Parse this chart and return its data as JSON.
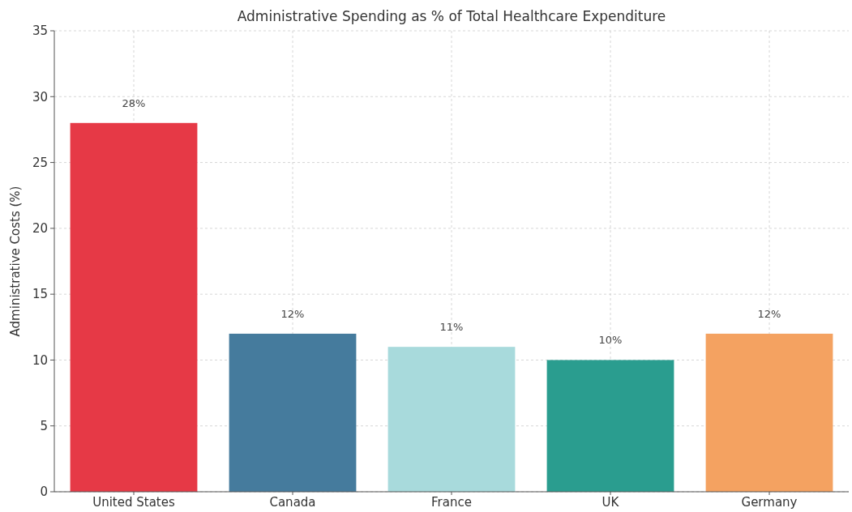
{
  "chart_data": {
    "type": "bar",
    "title": "Administrative Spending as % of Total Healthcare Expenditure",
    "ylabel": "Administrative Costs (%)",
    "categories": [
      "United States",
      "Canada",
      "France",
      "UK",
      "Germany"
    ],
    "values": [
      28,
      12,
      11,
      10,
      12
    ],
    "colors": [
      "#e63946",
      "#457b9d",
      "#a8dadc",
      "#2a9d8f",
      "#f4a261"
    ],
    "value_labels": [
      "28%",
      "12%",
      "11%",
      "10%",
      "12%"
    ],
    "ylim": [
      0,
      35
    ],
    "yticks": [
      0,
      5,
      10,
      15,
      20,
      25,
      30,
      35
    ],
    "grid": true
  }
}
